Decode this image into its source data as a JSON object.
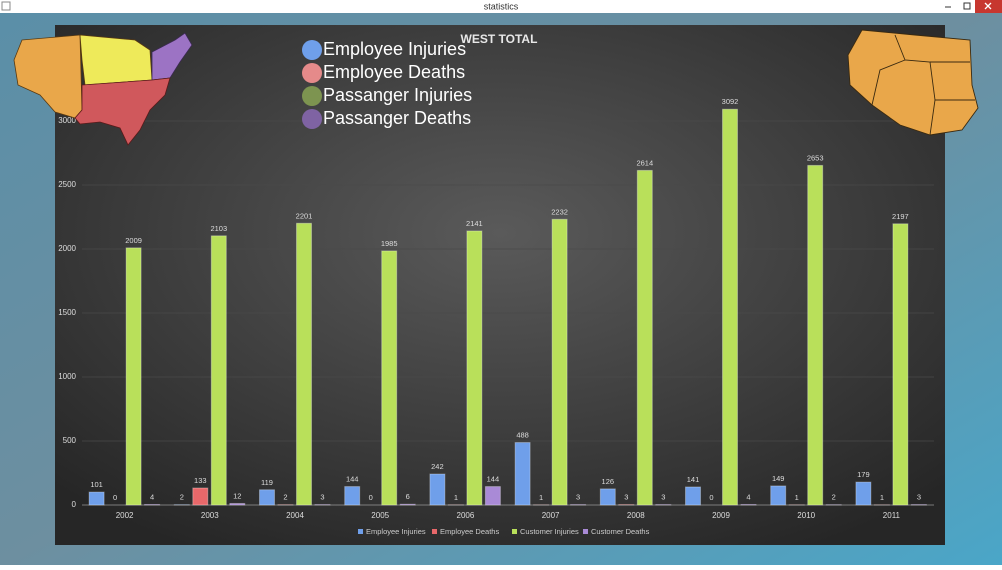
{
  "window": {
    "title": "statistics"
  },
  "chart_data": {
    "type": "bar",
    "title": "WEST TOTAL",
    "categories": [
      "2002",
      "2003",
      "2004",
      "2005",
      "2006",
      "2007",
      "2008",
      "2009",
      "2010",
      "2011"
    ],
    "series": [
      {
        "name": "Employee Injuries",
        "color": "#6f9fea",
        "values": [
          101,
          2,
          119,
          144,
          242,
          488,
          126,
          141,
          149,
          179
        ]
      },
      {
        "name": "Employee Deaths",
        "color": "#e8686a",
        "values": [
          0,
          133,
          2,
          0,
          1,
          1,
          3,
          0,
          1,
          1
        ]
      },
      {
        "name": "Customer Injuries",
        "color": "#b9e05a",
        "values": [
          2009,
          2103,
          2201,
          1985,
          2141,
          2232,
          2614,
          3092,
          2653,
          2197
        ]
      },
      {
        "name": "Customer Deaths",
        "color": "#a98ad6",
        "values": [
          4,
          12,
          3,
          6,
          144,
          3,
          3,
          4,
          2,
          3
        ]
      }
    ],
    "ylim": [
      0,
      3500
    ],
    "yticks": [
      0,
      500,
      1000,
      1500,
      2000,
      2500,
      3000
    ],
    "grid": true,
    "legend": "bottom",
    "overlay_legend": [
      {
        "name": "Employee Injuries",
        "color": "#6f9fea"
      },
      {
        "name": "Employee Deaths",
        "color": "#e58a8a"
      },
      {
        "name": "Passanger Injuries",
        "color": "#7d9450"
      },
      {
        "name": "Passanger Deaths",
        "color": "#7f63a3"
      }
    ]
  }
}
